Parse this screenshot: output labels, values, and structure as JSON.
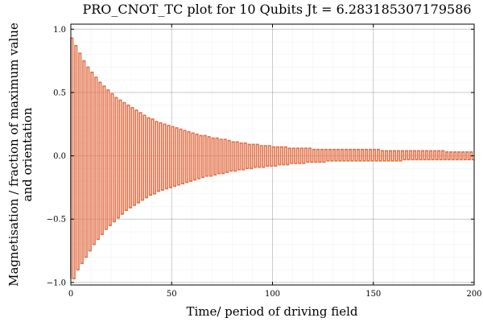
{
  "chart_data": {
    "type": "line",
    "title": "PRO_CNOT_TC plot for 10 Qubits Jt = 6.283185307179586",
    "xlabel": "Time/ period of driving field",
    "ylabel_lines": [
      "Magnetisation / fraction of maximum value",
      "and orientation"
    ],
    "xlim": [
      0,
      200
    ],
    "ylim": [
      -1.02,
      1.04
    ],
    "x_ticks": [
      0,
      50,
      100,
      150,
      200
    ],
    "x_tick_labels": [
      "0",
      "50",
      "100",
      "150",
      "200"
    ],
    "y_ticks": [
      -1.0,
      -0.5,
      0.0,
      0.5,
      1.0
    ],
    "y_tick_labels": [
      "−1.0",
      "−0.5",
      "0.0",
      "0.5",
      "1.0"
    ],
    "grid": true,
    "series": [
      {
        "color": "#e26f46",
        "step": true,
        "x": [
          0,
          2,
          4,
          6,
          8,
          10,
          12,
          14,
          16,
          18,
          20,
          22,
          24,
          26,
          28,
          30,
          32,
          34,
          36,
          38,
          40,
          42,
          44,
          46,
          48,
          50,
          52,
          54,
          56,
          58,
          60,
          62,
          64,
          66,
          68,
          70,
          72,
          74,
          76,
          78,
          80,
          82,
          84,
          86,
          88,
          90,
          92,
          94,
          96,
          98,
          100,
          102,
          104,
          106,
          108,
          110,
          112,
          114,
          116,
          118,
          120,
          122,
          124,
          126,
          128,
          130,
          132,
          134,
          136,
          138,
          140,
          142,
          144,
          146,
          148,
          150,
          152,
          154,
          156,
          158,
          160,
          162,
          164,
          166,
          168,
          170,
          172,
          174,
          176,
          178,
          180,
          182,
          184,
          186,
          188,
          190,
          192,
          194,
          196,
          198
        ],
        "y_high": [
          0.93,
          0.87,
          0.81,
          0.75,
          0.7,
          0.66,
          0.62,
          0.58,
          0.55,
          0.52,
          0.49,
          0.46,
          0.44,
          0.42,
          0.4,
          0.38,
          0.36,
          0.34,
          0.32,
          0.3,
          0.29,
          0.27,
          0.26,
          0.25,
          0.24,
          0.23,
          0.22,
          0.21,
          0.2,
          0.19,
          0.18,
          0.17,
          0.16,
          0.16,
          0.15,
          0.14,
          0.14,
          0.13,
          0.13,
          0.12,
          0.11,
          0.11,
          0.1,
          0.1,
          0.09,
          0.09,
          0.09,
          0.08,
          0.08,
          0.08,
          0.07,
          0.07,
          0.07,
          0.07,
          0.06,
          0.06,
          0.06,
          0.06,
          0.06,
          0.06,
          0.05,
          0.05,
          0.05,
          0.05,
          0.05,
          0.05,
          0.05,
          0.05,
          0.05,
          0.05,
          0.05,
          0.05,
          0.05,
          0.05,
          0.05,
          0.05,
          0.05,
          0.04,
          0.04,
          0.04,
          0.04,
          0.04,
          0.04,
          0.04,
          0.04,
          0.04,
          0.04,
          0.04,
          0.04,
          0.04,
          0.04,
          0.04,
          0.04,
          0.03,
          0.03,
          0.03,
          0.03,
          0.03,
          0.03,
          0.03
        ],
        "y_low": [
          -0.97,
          -0.9,
          -0.85,
          -0.8,
          -0.75,
          -0.7,
          -0.66,
          -0.62,
          -0.58,
          -0.55,
          -0.52,
          -0.49,
          -0.46,
          -0.43,
          -0.41,
          -0.39,
          -0.37,
          -0.35,
          -0.33,
          -0.31,
          -0.3,
          -0.28,
          -0.27,
          -0.26,
          -0.25,
          -0.24,
          -0.23,
          -0.22,
          -0.21,
          -0.2,
          -0.19,
          -0.18,
          -0.17,
          -0.16,
          -0.16,
          -0.15,
          -0.14,
          -0.14,
          -0.13,
          -0.12,
          -0.12,
          -0.11,
          -0.11,
          -0.1,
          -0.1,
          -0.09,
          -0.09,
          -0.09,
          -0.08,
          -0.08,
          -0.08,
          -0.07,
          -0.07,
          -0.07,
          -0.06,
          -0.06,
          -0.06,
          -0.06,
          -0.05,
          -0.05,
          -0.05,
          -0.05,
          -0.05,
          -0.04,
          -0.04,
          -0.04,
          -0.04,
          -0.04,
          -0.04,
          -0.04,
          -0.04,
          -0.04,
          -0.04,
          -0.04,
          -0.04,
          -0.04,
          -0.04,
          -0.04,
          -0.04,
          -0.04,
          -0.04,
          -0.04,
          -0.03,
          -0.03,
          -0.03,
          -0.03,
          -0.03,
          -0.03,
          -0.03,
          -0.03,
          -0.03,
          -0.03,
          -0.03,
          -0.03,
          -0.03,
          -0.03,
          -0.03,
          -0.03,
          -0.03,
          -0.03
        ]
      }
    ]
  }
}
